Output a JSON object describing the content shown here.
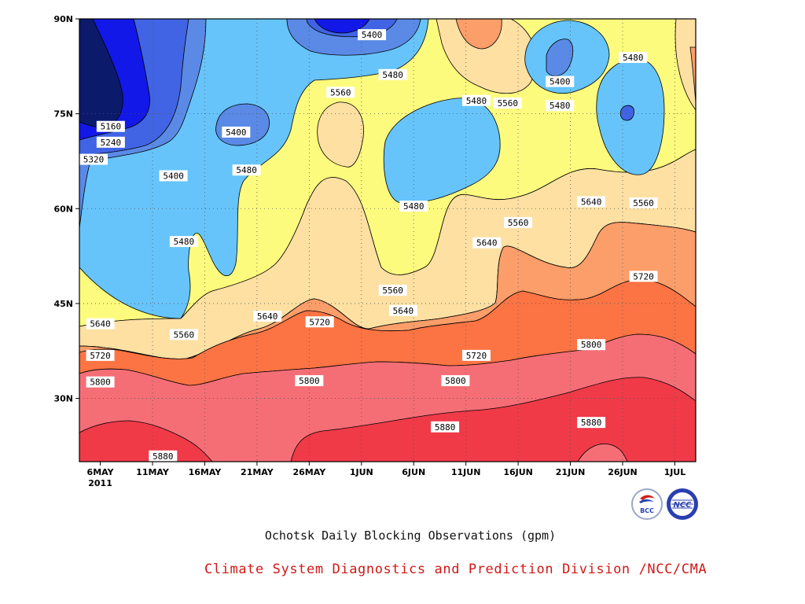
{
  "chart_data": {
    "type": "contour",
    "title": "Ochotsk Daily Blocking Observations (gpm)",
    "source": "Climate System Diagnostics and Prediction Division /NCC/CMA",
    "x_tick_labels": [
      "6MAY",
      "11MAY",
      "16MAY",
      "21MAY",
      "26MAY",
      "1JUN",
      "6JUN",
      "11JUN",
      "16JUN",
      "21JUN",
      "26JUN",
      "1JUL"
    ],
    "x_start_year_label": "2011",
    "x_range": [
      "2011-05-04",
      "2011-07-02"
    ],
    "y_tick_labels": [
      "30N",
      "45N",
      "60N",
      "75N",
      "90N"
    ],
    "y_range": [
      20,
      90
    ],
    "grid": true,
    "contour_levels": [
      5080,
      5160,
      5240,
      5320,
      5400,
      5480,
      5560,
      5640,
      5720,
      5800,
      5880
    ],
    "contour_labels": [
      {
        "text": "5400",
        "date": "2011-06-01",
        "lat": 87.5
      },
      {
        "text": "5480",
        "date": "2011-06-03",
        "lat": 81.2
      },
      {
        "text": "5560",
        "date": "2011-05-29",
        "lat": 78.4
      },
      {
        "text": "5480",
        "date": "2011-06-11",
        "lat": 77.1
      },
      {
        "text": "5560",
        "date": "2011-06-14",
        "lat": 76.7
      },
      {
        "text": "5400",
        "date": "2011-06-19",
        "lat": 80.1
      },
      {
        "text": "5480",
        "date": "2011-06-19",
        "lat": 76.3
      },
      {
        "text": "5480",
        "date": "2011-06-26",
        "lat": 83.9
      },
      {
        "text": "5160",
        "date": "2011-05-07",
        "lat": 73.0
      },
      {
        "text": "5240",
        "date": "2011-05-07",
        "lat": 70.5
      },
      {
        "text": "5320",
        "date": "2011-05-05",
        "lat": 67.8
      },
      {
        "text": "5400",
        "date": "2011-05-19",
        "lat": 72.1
      },
      {
        "text": "5400",
        "date": "2011-05-13",
        "lat": 65.2
      },
      {
        "text": "5480",
        "date": "2011-05-20",
        "lat": 66.1
      },
      {
        "text": "5480",
        "date": "2011-05-14",
        "lat": 54.8
      },
      {
        "text": "5480",
        "date": "2011-06-05",
        "lat": 60.4
      },
      {
        "text": "5560",
        "date": "2011-06-15",
        "lat": 57.8
      },
      {
        "text": "5640",
        "date": "2011-06-22",
        "lat": 61.1
      },
      {
        "text": "5560",
        "date": "2011-06-27",
        "lat": 60.9
      },
      {
        "text": "5640",
        "date": "2011-06-12",
        "lat": 54.6
      },
      {
        "text": "5720",
        "date": "2011-06-27",
        "lat": 49.3
      },
      {
        "text": "5560",
        "date": "2011-06-03",
        "lat": 47.1
      },
      {
        "text": "5640",
        "date": "2011-05-06",
        "lat": 41.8
      },
      {
        "text": "5560",
        "date": "2011-05-14",
        "lat": 40.1
      },
      {
        "text": "5640",
        "date": "2011-05-22",
        "lat": 43.0
      },
      {
        "text": "5720",
        "date": "2011-05-27",
        "lat": 42.1
      },
      {
        "text": "5640",
        "date": "2011-06-04",
        "lat": 43.9
      },
      {
        "text": "5720",
        "date": "2011-06-11",
        "lat": 36.8
      },
      {
        "text": "5720",
        "date": "2011-05-06",
        "lat": 36.8
      },
      {
        "text": "5800",
        "date": "2011-05-06",
        "lat": 32.6
      },
      {
        "text": "5800",
        "date": "2011-05-26",
        "lat": 32.8
      },
      {
        "text": "5800",
        "date": "2011-06-09",
        "lat": 32.8
      },
      {
        "text": "5800",
        "date": "2011-06-22",
        "lat": 38.5
      },
      {
        "text": "5880",
        "date": "2011-06-22",
        "lat": 26.2
      },
      {
        "text": "5880",
        "date": "2011-06-08",
        "lat": 25.5
      },
      {
        "text": "5880",
        "date": "2011-05-12",
        "lat": 20.9
      }
    ]
  },
  "palette": {
    "5080": "#0c1a6c",
    "5160": "#1218e8",
    "5240": "#4064e4",
    "5320": "#5a8ae6",
    "5400": "#64bef6",
    "5480": "#66c4fb",
    "5560": "#fdfb7e",
    "5640": "#fde0a2",
    "5720": "#fc9e6a",
    "5800": "#fc7444",
    "5880": "#f56e76",
    "5960": "#f03a48"
  },
  "logos": {
    "bcc": "BCC",
    "ncc": "NCC"
  }
}
